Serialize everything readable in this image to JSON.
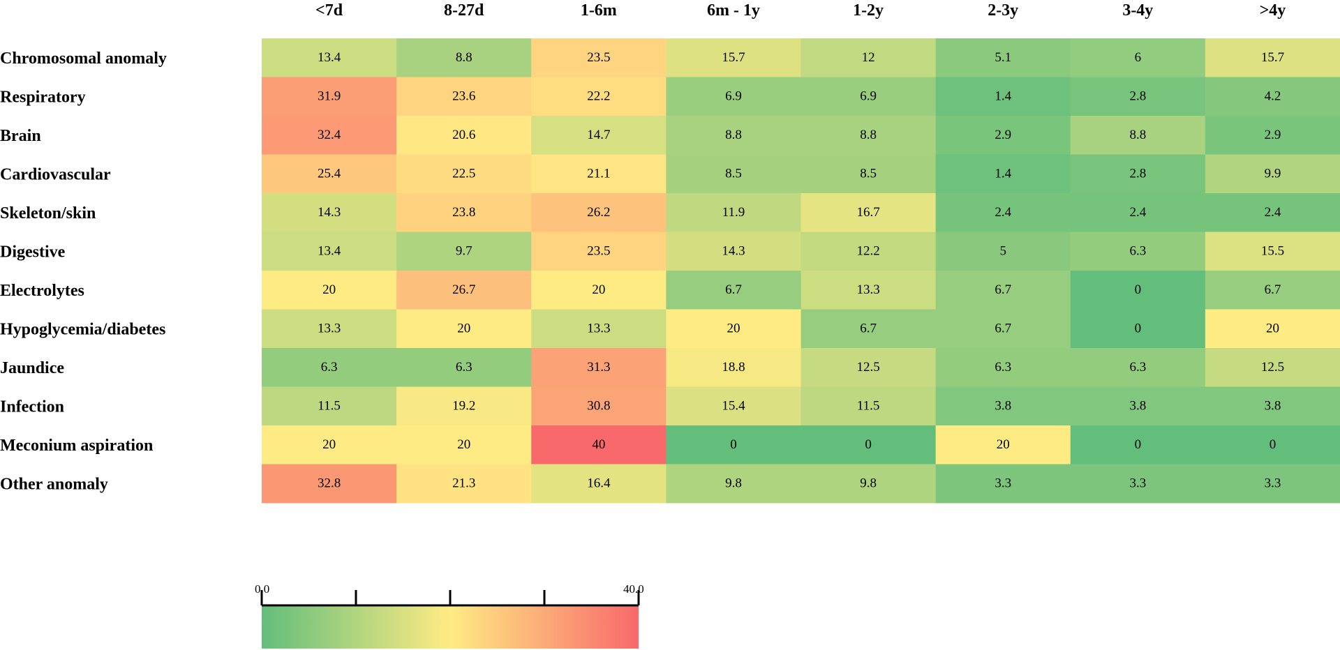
{
  "chart_data": {
    "type": "heatmap",
    "columns": [
      "<7d",
      "8-27d",
      "1-6m",
      "6m - 1y",
      "1-2y",
      "2-3y",
      "3-4y",
      ">4y"
    ],
    "rows": [
      "Chromosomal anomaly",
      "Respiratory",
      "Brain",
      "Cardiovascular",
      "Skeleton/skin",
      "Digestive",
      "Electrolytes",
      "Hypoglycemia/diabetes",
      "Jaundice",
      "Infection",
      "Meconium aspiration",
      "Other anomaly"
    ],
    "values": [
      [
        "13.4",
        "8.8",
        "23.5",
        "15.7",
        "12",
        "5.1",
        "6",
        "15.7"
      ],
      [
        "31.9",
        "23.6",
        "22.2",
        "6.9",
        "6.9",
        "1.4",
        "2.8",
        "4.2"
      ],
      [
        "32.4",
        "20.6",
        "14.7",
        "8.8",
        "8.8",
        "2.9",
        "8.8",
        "2.9"
      ],
      [
        "25.4",
        "22.5",
        "21.1",
        "8.5",
        "8.5",
        "1.4",
        "2.8",
        "9.9"
      ],
      [
        "14.3",
        "23.8",
        "26.2",
        "11.9",
        "16.7",
        "2.4",
        "2.4",
        "2.4"
      ],
      [
        "13.4",
        "9.7",
        "23.5",
        "14.3",
        "12.2",
        "5",
        "6.3",
        "15.5"
      ],
      [
        "20",
        "26.7",
        "20",
        "6.7",
        "13.3",
        "6.7",
        "0",
        "6.7"
      ],
      [
        "13.3",
        "20",
        "13.3",
        "20",
        "6.7",
        "6.7",
        "0",
        "20"
      ],
      [
        "6.3",
        "6.3",
        "31.3",
        "18.8",
        "12.5",
        "6.3",
        "6.3",
        "12.5"
      ],
      [
        "11.5",
        "19.2",
        "30.8",
        "15.4",
        "11.5",
        "3.8",
        "3.8",
        "3.8"
      ],
      [
        "20",
        "20",
        "40",
        "0",
        "0",
        "20",
        "0",
        "0"
      ],
      [
        "32.8",
        "21.3",
        "16.4",
        "9.8",
        "9.8",
        "3.3",
        "3.3",
        "3.3"
      ]
    ],
    "color_scale": {
      "min": 0,
      "max": 40,
      "min_label": "0.0",
      "max_label": "40.0",
      "colors": [
        "#63be7b",
        "#ffeb84",
        "#f8696b"
      ]
    },
    "grid": false
  }
}
